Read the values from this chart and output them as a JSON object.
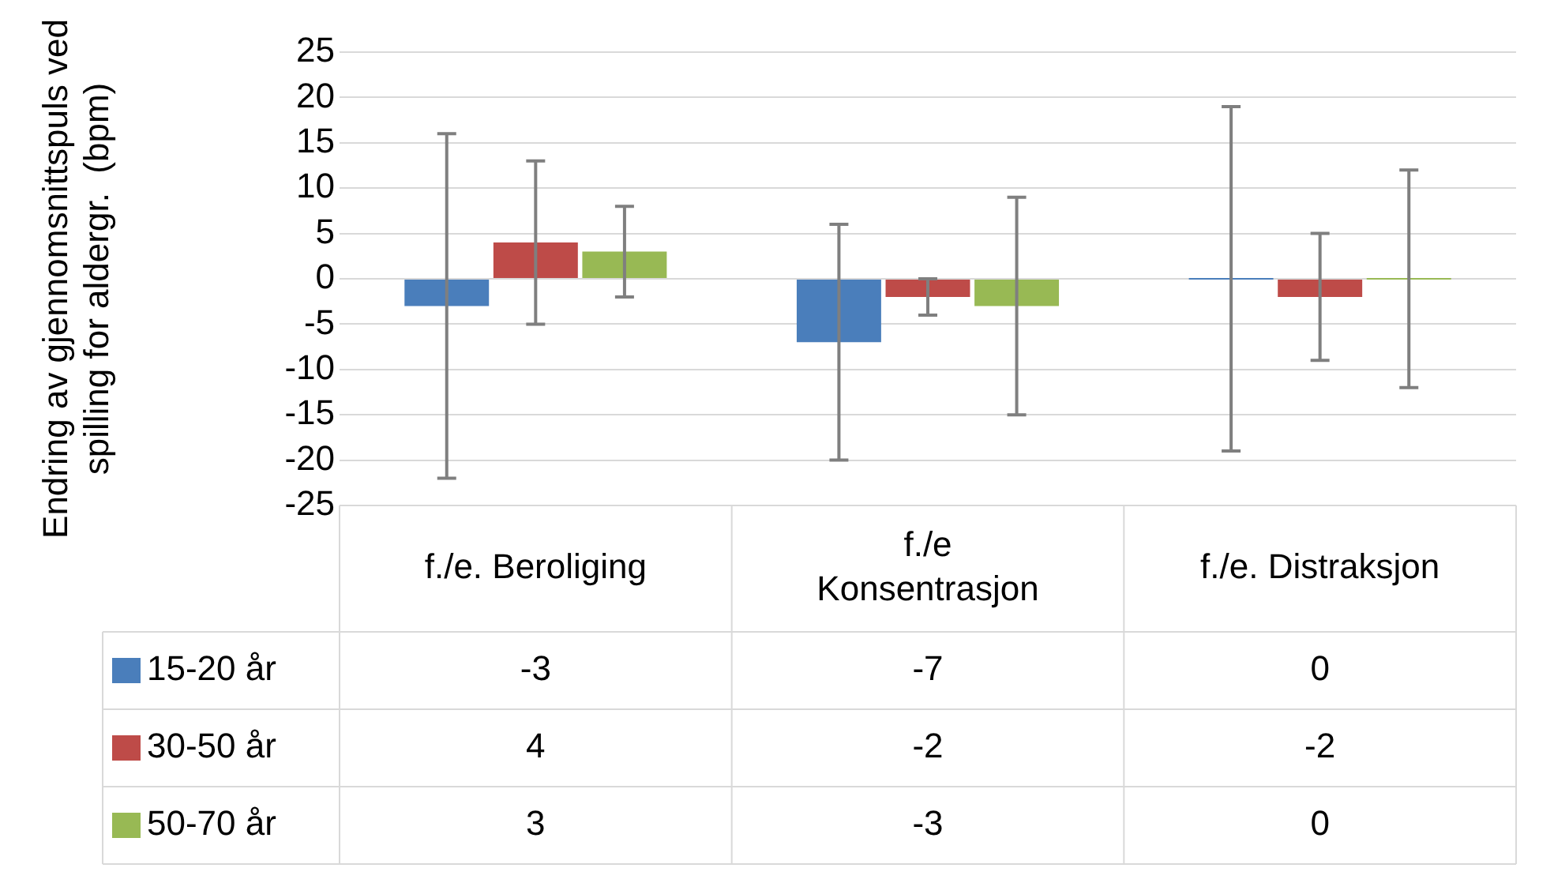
{
  "chart_data": {
    "type": "bar",
    "ylabel": "Endring av gjennomsnittspuls ved spilling for aldergr.  (bpm)",
    "categories": [
      "f./e. Beroliging",
      "f./e Konsentrasjon",
      "f./e. Distraksjon"
    ],
    "series": [
      {
        "name": "15-20 år",
        "color": "#4a7ebb",
        "values": [
          -3,
          -7,
          0
        ],
        "errors": [
          19,
          13,
          19
        ]
      },
      {
        "name": "30-50 år",
        "color": "#be4b48",
        "values": [
          4,
          -2,
          -2
        ],
        "errors": [
          9,
          2,
          7
        ]
      },
      {
        "name": "50-70 år",
        "color": "#98b954",
        "values": [
          3,
          -3,
          0
        ],
        "errors": [
          5,
          12,
          12
        ]
      }
    ],
    "ylim": [
      -25,
      25
    ],
    "yticks": [
      -25,
      -20,
      -15,
      -10,
      -5,
      0,
      5,
      10,
      15,
      20,
      25
    ],
    "grid": "y",
    "legend": "bottom",
    "data_labels": true
  }
}
